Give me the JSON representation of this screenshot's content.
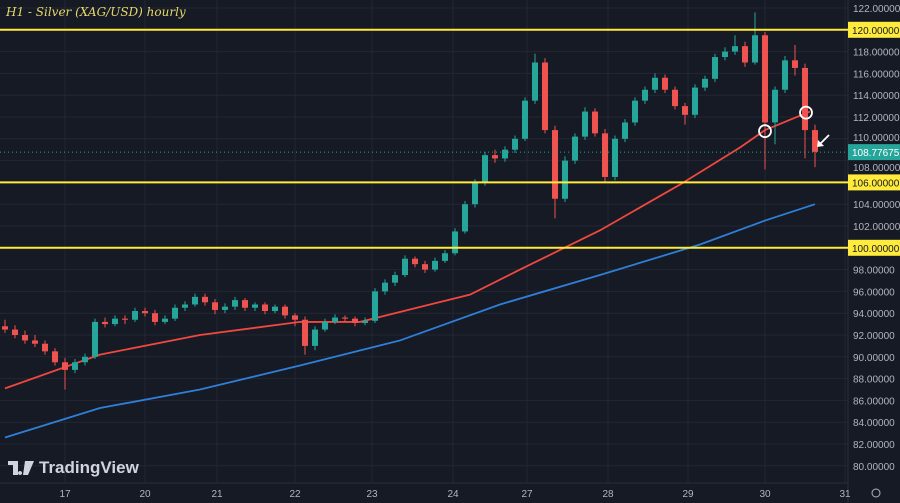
{
  "title": "H1 - Silver (XAG/USD) hourly",
  "brand": "TradingView",
  "colors": {
    "bg": "#161a25",
    "up": "#26a69a",
    "down": "#ef5350",
    "ma_fast": "#f0483e",
    "ma_slow": "#2f7fd8",
    "level": "#ffeb3b",
    "last": "#26a69a"
  },
  "chart_data": {
    "type": "candlestick",
    "ylim": [
      79,
      123
    ],
    "y_ticks": [
      80,
      82,
      84,
      86,
      88,
      90,
      92,
      94,
      96,
      98,
      100,
      102,
      104,
      106,
      108,
      110,
      112,
      114,
      116,
      118,
      120,
      122
    ],
    "y_tick_labels": [
      "80.00000",
      "82.00000",
      "84.00000",
      "86.00000",
      "88.00000",
      "90.00000",
      "92.00000",
      "94.00000",
      "96.00000",
      "98.00000",
      "100.00000",
      "102.00000",
      "104.00000",
      "106.00000",
      "108.00000",
      "110.00000",
      "112.00000",
      "114.00000",
      "116.00000",
      "118.00000",
      "120.00000",
      "122.00000"
    ],
    "x_ticks": [
      {
        "i": 6,
        "label": "17"
      },
      {
        "i": 14,
        "label": "20"
      },
      {
        "i": 21.2,
        "label": "21"
      },
      {
        "i": 29,
        "label": "22"
      },
      {
        "i": 36.7,
        "label": "23"
      },
      {
        "i": 44.8,
        "label": "24"
      },
      {
        "i": 52.2,
        "label": "27"
      },
      {
        "i": 60.3,
        "label": "28"
      },
      {
        "i": 68.3,
        "label": "29"
      },
      {
        "i": 76,
        "label": "30"
      },
      {
        "i": 84,
        "label": "31"
      }
    ],
    "candles": [
      [
        92.8,
        93.4,
        92.2,
        92.5
      ],
      [
        92.5,
        92.9,
        91.7,
        92
      ],
      [
        92,
        92.4,
        91.2,
        91.5
      ],
      [
        91.5,
        92,
        90.9,
        91.2
      ],
      [
        91.2,
        91.5,
        90.2,
        90.5
      ],
      [
        90.5,
        90.8,
        89.2,
        89.5
      ],
      [
        89.5,
        89.9,
        87,
        88.8
      ],
      [
        88.8,
        89.8,
        88.5,
        89.5
      ],
      [
        89.5,
        90.3,
        89.2,
        90
      ],
      [
        90,
        93.5,
        89.8,
        93.2
      ],
      [
        93.2,
        93.6,
        92.7,
        93
      ],
      [
        93,
        93.8,
        92.8,
        93.5
      ],
      [
        93.5,
        93.8,
        93,
        93.4
      ],
      [
        93.4,
        94.5,
        93.2,
        94.2
      ],
      [
        94.2,
        94.5,
        93.7,
        94
      ],
      [
        94,
        94.3,
        92.9,
        93.2
      ],
      [
        93.2,
        93.8,
        93,
        93.5
      ],
      [
        93.5,
        94.8,
        93.3,
        94.5
      ],
      [
        94.5,
        95.1,
        94.2,
        94.8
      ],
      [
        94.8,
        95.8,
        94.6,
        95.5
      ],
      [
        95.5,
        95.8,
        94.7,
        95
      ],
      [
        95,
        95.3,
        93.9,
        94.3
      ],
      [
        94.3,
        94.9,
        94,
        94.6
      ],
      [
        94.6,
        95.5,
        94.3,
        95.2
      ],
      [
        95.2,
        95.4,
        94.2,
        94.5
      ],
      [
        94.5,
        95,
        94.2,
        94.8
      ],
      [
        94.8,
        95,
        93.9,
        94.2
      ],
      [
        94.2,
        94.8,
        94,
        94.6
      ],
      [
        94.6,
        94.8,
        93.5,
        93.8
      ],
      [
        93.8,
        94,
        92.8,
        93.4
      ],
      [
        93.4,
        93.7,
        90.2,
        91
      ],
      [
        91,
        92.8,
        90.6,
        92.5
      ],
      [
        92.5,
        93.5,
        92.3,
        93.2
      ],
      [
        93.2,
        93.9,
        93,
        93.6
      ],
      [
        93.6,
        93.8,
        93.2,
        93.5
      ],
      [
        93.5,
        93.7,
        92.8,
        93.1
      ],
      [
        93.1,
        93.6,
        92.9,
        93.3
      ],
      [
        93.3,
        96.3,
        93.1,
        96
      ],
      [
        96,
        97.1,
        95.7,
        96.8
      ],
      [
        96.8,
        97.8,
        96.5,
        97.5
      ],
      [
        97.5,
        99.3,
        97.3,
        99
      ],
      [
        99,
        99.2,
        98.2,
        98.5
      ],
      [
        98.5,
        98.8,
        97.7,
        98
      ],
      [
        98,
        99.1,
        97.8,
        98.8
      ],
      [
        98.8,
        99.8,
        98.6,
        99.5
      ],
      [
        99.5,
        101.8,
        99.3,
        101.5
      ],
      [
        101.5,
        104.3,
        101.3,
        104
      ],
      [
        104,
        106.3,
        103.7,
        106
      ],
      [
        106,
        108.8,
        105.7,
        108.5
      ],
      [
        108.5,
        109,
        107.8,
        108.2
      ],
      [
        108.2,
        109.3,
        107.9,
        109
      ],
      [
        109,
        110.3,
        108.7,
        110
      ],
      [
        110,
        113.8,
        109.8,
        113.5
      ],
      [
        113.5,
        117.8,
        113.2,
        117
      ],
      [
        117,
        117.4,
        110.5,
        110.8
      ],
      [
        110.8,
        111.2,
        102.7,
        104.5
      ],
      [
        104.5,
        108.4,
        104.2,
        108
      ],
      [
        108,
        110.5,
        107.7,
        110.2
      ],
      [
        110.2,
        112.9,
        109.9,
        112.5
      ],
      [
        112.5,
        112.8,
        110.2,
        110.5
      ],
      [
        110.5,
        110.9,
        106,
        106.5
      ],
      [
        106.5,
        110.3,
        106.2,
        110
      ],
      [
        110,
        111.8,
        109.7,
        111.5
      ],
      [
        111.5,
        113.8,
        111.2,
        113.5
      ],
      [
        113.5,
        114.8,
        113.2,
        114.5
      ],
      [
        114.5,
        116,
        114.2,
        115.6
      ],
      [
        115.6,
        115.9,
        114.2,
        114.5
      ],
      [
        114.5,
        114.8,
        112.7,
        113
      ],
      [
        113,
        113.3,
        111.3,
        112.2
      ],
      [
        112.2,
        115,
        111.9,
        114.7
      ],
      [
        114.7,
        115.8,
        114.4,
        115.5
      ],
      [
        115.5,
        117.8,
        115.2,
        117.5
      ],
      [
        117.5,
        118.4,
        117.2,
        118
      ],
      [
        118,
        119.5,
        117.7,
        118.5
      ],
      [
        118.5,
        118.9,
        116.6,
        117
      ],
      [
        117,
        121.6,
        116.8,
        119.5
      ],
      [
        119.5,
        119.8,
        107.2,
        111.5
      ],
      [
        111.5,
        114.8,
        109.5,
        114.5
      ],
      [
        114.5,
        117.6,
        114.2,
        117.2
      ],
      [
        117.2,
        118.6,
        115.8,
        116.5
      ],
      [
        116.5,
        116.9,
        108.2,
        110.8
      ],
      [
        110.8,
        111.3,
        107.4,
        108.8
      ]
    ],
    "ma_fast": [
      [
        0,
        87.1
      ],
      [
        9.5,
        90.2
      ],
      [
        19.5,
        92
      ],
      [
        29.5,
        93.2
      ],
      [
        35.5,
        93.2
      ],
      [
        42.5,
        94.8
      ],
      [
        46.5,
        95.7
      ],
      [
        51.5,
        98
      ],
      [
        55.5,
        99.8
      ],
      [
        59.5,
        101.6
      ],
      [
        67.5,
        105.8
      ],
      [
        73.5,
        109.2
      ],
      [
        76,
        110.8
      ],
      [
        80.5,
        112.5
      ]
    ],
    "ma_slow": [
      [
        0,
        82.6
      ],
      [
        9.5,
        85.3
      ],
      [
        19.5,
        87
      ],
      [
        29.5,
        89.2
      ],
      [
        39.5,
        91.5
      ],
      [
        49.5,
        94.8
      ],
      [
        59.5,
        97.5
      ],
      [
        69.5,
        100.3
      ],
      [
        76,
        102.5
      ],
      [
        81,
        104
      ]
    ],
    "levels": [
      {
        "value": 120,
        "label": "120.00000"
      },
      {
        "value": 106,
        "label": "106.00000"
      },
      {
        "value": 100,
        "label": "100.00000"
      }
    ],
    "last_price": {
      "value": 108.77675,
      "label": "108.77675"
    },
    "annotations": [
      {
        "type": "circle",
        "i": 76,
        "y": 110.7
      },
      {
        "type": "circle",
        "i": 80.1,
        "y": 112.4
      },
      {
        "type": "arrow",
        "i": 81.8,
        "y": 109.8
      }
    ]
  }
}
